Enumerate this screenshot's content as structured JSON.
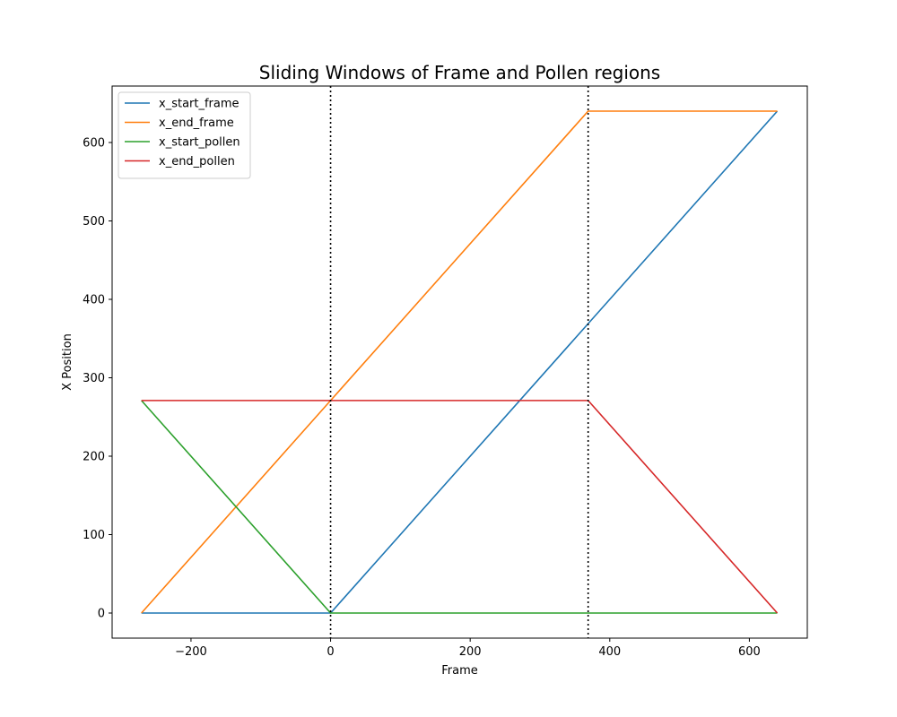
{
  "chart_data": {
    "type": "line",
    "title": "Sliding Windows of Frame and Pollen regions",
    "xlabel": "Frame",
    "ylabel": "X Position",
    "xlim": [
      -313,
      683
    ],
    "ylim": [
      -32,
      672
    ],
    "xticks": [
      -200,
      0,
      200,
      400,
      600
    ],
    "xtick_labels": [
      "−200",
      "0",
      "200",
      "400",
      "600"
    ],
    "yticks": [
      0,
      100,
      200,
      300,
      400,
      500,
      600
    ],
    "ytick_labels": [
      "0",
      "100",
      "200",
      "300",
      "400",
      "500",
      "600"
    ],
    "grid": false,
    "legend_position": "upper-left",
    "vlines": [
      {
        "x": 0,
        "style": "dotted",
        "color": "#000000"
      },
      {
        "x": 369,
        "style": "dotted",
        "color": "#000000"
      }
    ],
    "series": [
      {
        "name": "x_start_frame",
        "color": "#1f77b4",
        "x": [
          -271,
          0,
          369,
          640
        ],
        "y": [
          0,
          0,
          369,
          640
        ]
      },
      {
        "name": "x_end_frame",
        "color": "#ff7f0e",
        "x": [
          -271,
          0,
          369,
          640
        ],
        "y": [
          0,
          271,
          640,
          640
        ]
      },
      {
        "name": "x_start_pollen",
        "color": "#2ca02c",
        "x": [
          -271,
          0,
          369,
          640
        ],
        "y": [
          271,
          0,
          0,
          0
        ]
      },
      {
        "name": "x_end_pollen",
        "color": "#d62728",
        "x": [
          -271,
          0,
          369,
          640
        ],
        "y": [
          271,
          271,
          271,
          0
        ]
      }
    ]
  }
}
